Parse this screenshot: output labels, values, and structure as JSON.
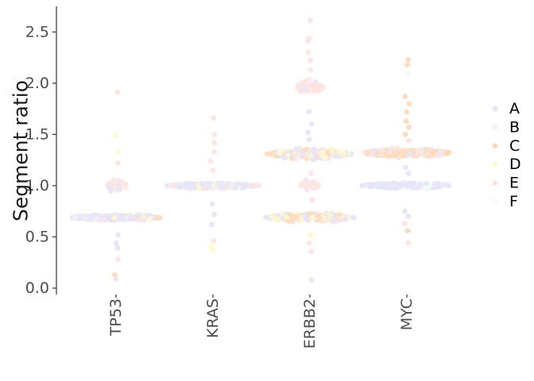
{
  "chart_data": {
    "type": "scatter",
    "subtype": "beeswarm",
    "ylabel": "Segment ratio",
    "xlabel": "",
    "categories": [
      "TP53",
      "KRAS",
      "ERBB2",
      "MYC"
    ],
    "ylim": [
      0,
      2.75
    ],
    "yticks": [
      0.0,
      0.5,
      1.0,
      1.5,
      2.0,
      2.5
    ],
    "ytick_labels": [
      "0.0",
      "0.5",
      "1.0",
      "1.5",
      "2.0",
      "2.5"
    ],
    "grid": false,
    "legend": {
      "placement": "right",
      "entries": [
        "A",
        "B",
        "C",
        "D",
        "E",
        "F"
      ]
    },
    "series_colors": {
      "A": "#e6e6fa",
      "B": "#f2f0f0",
      "C": "#ffdab9",
      "D": "#fffacd",
      "E": "#ffe4e1",
      "F": "#f0fff0"
    },
    "clusters": [
      {
        "category": "TP53",
        "center": 0.69,
        "spread": 0.015,
        "count": 320,
        "width": 0.95,
        "series_mix": {
          "A": 0.6,
          "B": 0.1,
          "C": 0.1,
          "D": 0.1,
          "E": 0.1
        }
      },
      {
        "category": "TP53",
        "center": 1.0,
        "spread": 0.03,
        "count": 30,
        "width": 0.25,
        "series_mix": {
          "E": 0.8,
          "A": 0.2
        }
      },
      {
        "category": "KRAS",
        "center": 1.0,
        "spread": 0.015,
        "count": 320,
        "width": 0.95,
        "series_mix": {
          "A": 0.6,
          "B": 0.15,
          "D": 0.1,
          "E": 0.15
        }
      },
      {
        "category": "ERBB2",
        "center": 0.69,
        "spread": 0.02,
        "count": 280,
        "width": 0.95,
        "series_mix": {
          "A": 0.35,
          "C": 0.25,
          "D": 0.25,
          "E": 0.15
        }
      },
      {
        "category": "ERBB2",
        "center": 1.31,
        "spread": 0.025,
        "count": 280,
        "width": 0.9,
        "series_mix": {
          "A": 0.45,
          "C": 0.2,
          "D": 0.2,
          "E": 0.15
        }
      },
      {
        "category": "ERBB2",
        "center": 1.96,
        "spread": 0.035,
        "count": 60,
        "width": 0.3,
        "series_mix": {
          "E": 0.85,
          "A": 0.15
        }
      },
      {
        "category": "ERBB2",
        "center": 1.0,
        "spread": 0.03,
        "count": 30,
        "width": 0.2,
        "series_mix": {
          "E": 0.8,
          "A": 0.2
        }
      },
      {
        "category": "MYC",
        "center": 1.32,
        "spread": 0.02,
        "count": 300,
        "width": 0.95,
        "series_mix": {
          "C": 0.55,
          "E": 0.25,
          "A": 0.2
        }
      },
      {
        "category": "MYC",
        "center": 1.0,
        "spread": 0.015,
        "count": 250,
        "width": 0.95,
        "series_mix": {
          "A": 0.8,
          "B": 0.1,
          "F": 0.1
        }
      }
    ],
    "scatter_points": [
      {
        "category": "TP53",
        "y": 1.91,
        "series": "E"
      },
      {
        "category": "TP53",
        "y": 1.49,
        "series": "D"
      },
      {
        "category": "TP53",
        "y": 1.33,
        "series": "D"
      },
      {
        "category": "TP53",
        "y": 1.22,
        "series": "E"
      },
      {
        "category": "TP53",
        "y": 0.52,
        "series": "A"
      },
      {
        "category": "TP53",
        "y": 0.44,
        "series": "A"
      },
      {
        "category": "TP53",
        "y": 0.39,
        "series": "A"
      },
      {
        "category": "TP53",
        "y": 0.28,
        "series": "E"
      },
      {
        "category": "TP53",
        "y": 0.13,
        "series": "C"
      },
      {
        "category": "TP53",
        "y": 0.09,
        "series": "A"
      },
      {
        "category": "KRAS",
        "y": 1.66,
        "series": "E"
      },
      {
        "category": "KRAS",
        "y": 1.5,
        "series": "E"
      },
      {
        "category": "KRAS",
        "y": 1.42,
        "series": "E"
      },
      {
        "category": "KRAS",
        "y": 1.33,
        "series": "E"
      },
      {
        "category": "KRAS",
        "y": 1.24,
        "series": "E"
      },
      {
        "category": "KRAS",
        "y": 1.15,
        "series": "E"
      },
      {
        "category": "KRAS",
        "y": 0.82,
        "series": "A"
      },
      {
        "category": "KRAS",
        "y": 0.72,
        "series": "A"
      },
      {
        "category": "KRAS",
        "y": 0.62,
        "series": "A"
      },
      {
        "category": "KRAS",
        "y": 0.46,
        "series": "E"
      },
      {
        "category": "KRAS",
        "y": 0.41,
        "series": "D"
      },
      {
        "category": "KRAS",
        "y": 0.37,
        "series": "D"
      },
      {
        "category": "ERBB2",
        "y": 2.61,
        "series": "E"
      },
      {
        "category": "ERBB2",
        "y": 2.44,
        "series": "E"
      },
      {
        "category": "ERBB2",
        "y": 2.41,
        "series": "E"
      },
      {
        "category": "ERBB2",
        "y": 2.3,
        "series": "E"
      },
      {
        "category": "ERBB2",
        "y": 2.22,
        "series": "E"
      },
      {
        "category": "ERBB2",
        "y": 2.13,
        "series": "E"
      },
      {
        "category": "ERBB2",
        "y": 1.72,
        "series": "A"
      },
      {
        "category": "ERBB2",
        "y": 1.6,
        "series": "A"
      },
      {
        "category": "ERBB2",
        "y": 1.52,
        "series": "A"
      },
      {
        "category": "ERBB2",
        "y": 1.45,
        "series": "A"
      },
      {
        "category": "ERBB2",
        "y": 1.12,
        "series": "E"
      },
      {
        "category": "ERBB2",
        "y": 0.86,
        "series": "E"
      },
      {
        "category": "ERBB2",
        "y": 0.52,
        "series": "D"
      },
      {
        "category": "ERBB2",
        "y": 0.44,
        "series": "E"
      },
      {
        "category": "ERBB2",
        "y": 0.36,
        "series": "E"
      },
      {
        "category": "ERBB2",
        "y": 0.08,
        "series": "A"
      },
      {
        "category": "MYC",
        "y": 2.23,
        "series": "C"
      },
      {
        "category": "MYC",
        "y": 2.18,
        "series": "C"
      },
      {
        "category": "MYC",
        "y": 2.1,
        "series": "F"
      },
      {
        "category": "MYC",
        "y": 1.87,
        "series": "C"
      },
      {
        "category": "MYC",
        "y": 1.8,
        "series": "C"
      },
      {
        "category": "MYC",
        "y": 1.72,
        "series": "C"
      },
      {
        "category": "MYC",
        "y": 1.63,
        "series": "C"
      },
      {
        "category": "MYC",
        "y": 1.57,
        "series": "C"
      },
      {
        "category": "MYC",
        "y": 1.5,
        "series": "C"
      },
      {
        "category": "MYC",
        "y": 1.44,
        "series": "E"
      },
      {
        "category": "MYC",
        "y": 1.18,
        "series": "A"
      },
      {
        "category": "MYC",
        "y": 1.12,
        "series": "A"
      },
      {
        "category": "MYC",
        "y": 0.75,
        "series": "A"
      },
      {
        "category": "MYC",
        "y": 0.7,
        "series": "A"
      },
      {
        "category": "MYC",
        "y": 0.63,
        "series": "E"
      },
      {
        "category": "MYC",
        "y": 0.56,
        "series": "C"
      },
      {
        "category": "MYC",
        "y": 0.44,
        "series": "E"
      }
    ]
  }
}
